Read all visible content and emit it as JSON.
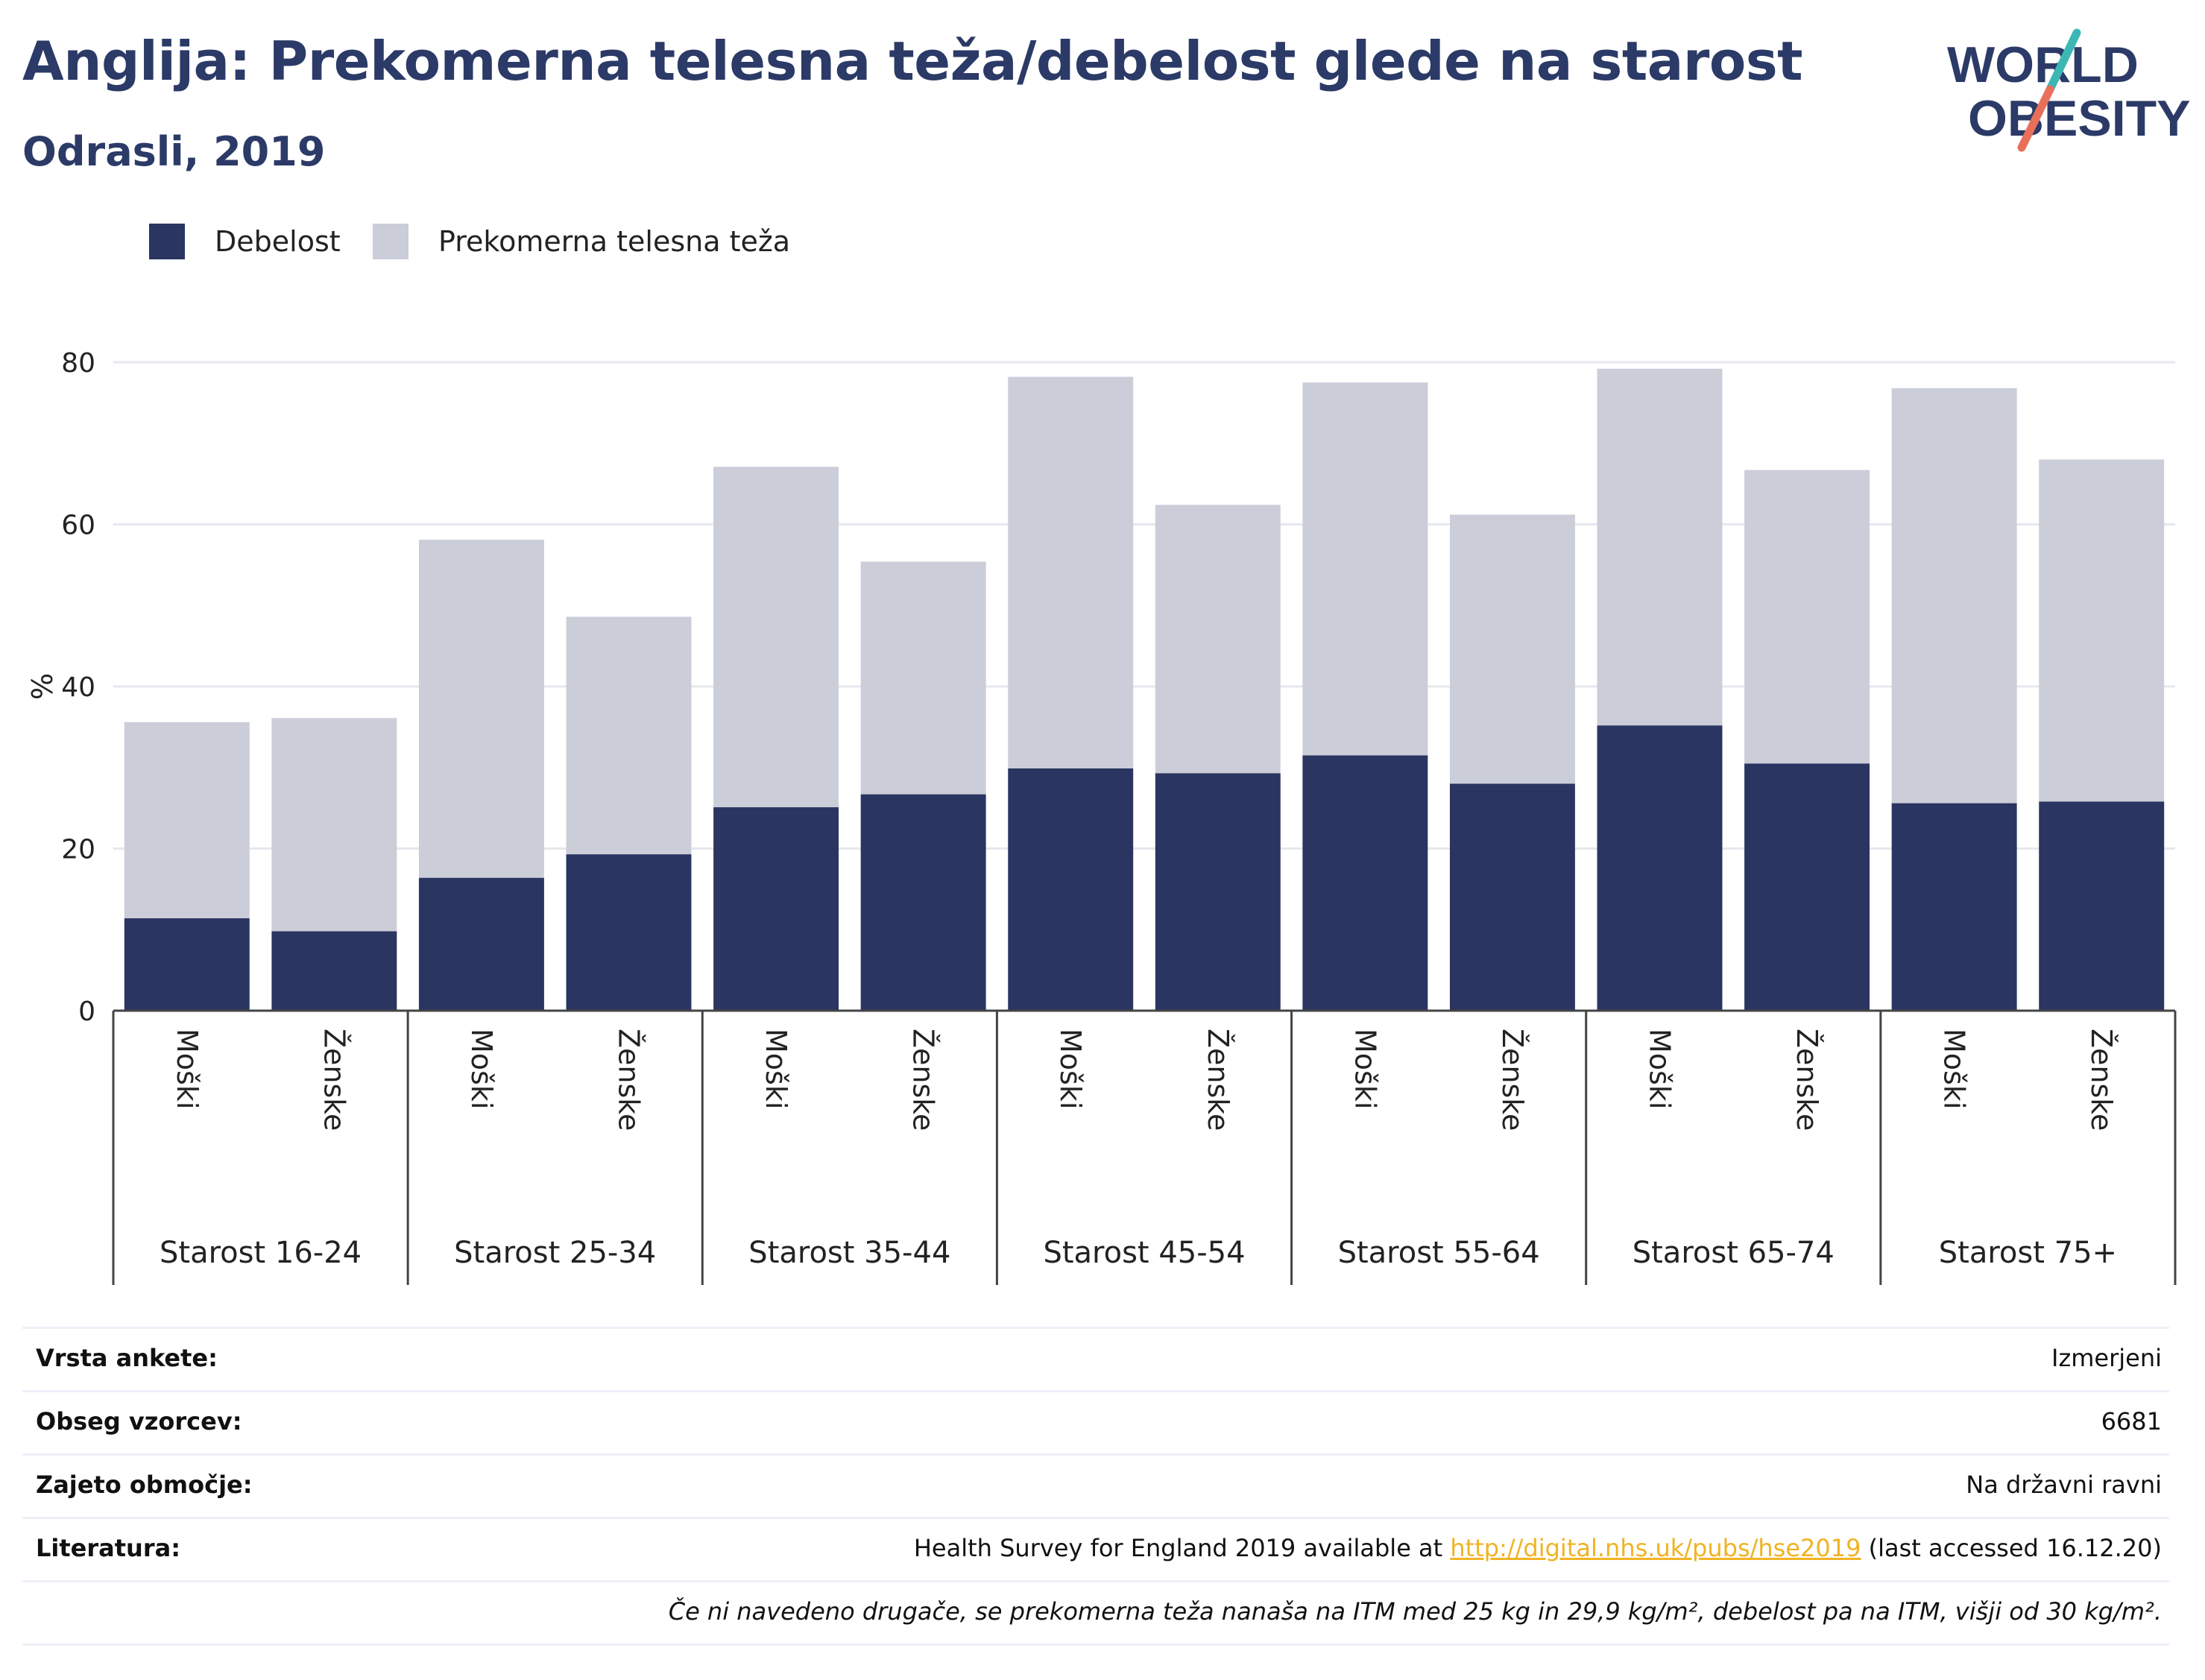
{
  "header": {
    "title": "Anglija: Prekomerna telesna teža/debelost glede na starost",
    "subtitle": "Odrasli, 2019"
  },
  "logo": {
    "line1": "WORLD",
    "line2": "OBESITY",
    "colors": {
      "text": "#2b3a67",
      "slash_top": "#3cb7b4",
      "slash_bottom": "#e8705a"
    }
  },
  "colors": {
    "obesity": "#2b3562",
    "overweight": "#cbcdd9",
    "grid": "#e6e8ee",
    "axis": "#444444"
  },
  "chart_data": {
    "type": "bar",
    "stacked": true,
    "ylabel": "%",
    "ylim": [
      0,
      80
    ],
    "yticks": [
      0,
      20,
      40,
      60,
      80
    ],
    "grid": true,
    "legend_position": "top-left",
    "groups": [
      "Starost 16-24",
      "Starost 25-34",
      "Starost 35-44",
      "Starost 45-54",
      "Starost 55-64",
      "Starost 65-74",
      "Starost 75+"
    ],
    "subcategories": [
      "Moški",
      "Ženske"
    ],
    "categories": [
      "Moški",
      "Ženske",
      "Moški",
      "Ženske",
      "Moški",
      "Ženske",
      "Moški",
      "Ženske",
      "Moški",
      "Ženske",
      "Moški",
      "Ženske",
      "Moški",
      "Ženske"
    ],
    "series": [
      {
        "name": "Debelost",
        "values": [
          11.4,
          9.8,
          16.4,
          19.3,
          25.1,
          26.7,
          29.9,
          29.3,
          31.5,
          28.0,
          35.2,
          30.5,
          25.6,
          25.8
        ]
      },
      {
        "name": "Prekomerna telesna teža",
        "values": [
          24.2,
          26.3,
          41.7,
          29.3,
          42.0,
          28.7,
          48.3,
          33.1,
          46.0,
          33.2,
          44.0,
          36.2,
          51.2,
          42.2
        ]
      }
    ]
  },
  "info": {
    "rows": [
      {
        "key": "Vrsta ankete:",
        "value": "Izmerjeni"
      },
      {
        "key": "Obseg vzorcev:",
        "value": "6681"
      },
      {
        "key": "Zajeto območje:",
        "value": "Na državni ravni"
      }
    ],
    "literature": {
      "key": "Literatura:",
      "before": "Health Survey for England 2019 available at ",
      "link": "http://digital.nhs.uk/pubs/hse2019",
      "after": " (last accessed 16.12.20)"
    },
    "note": "Če ni navedeno drugače, se prekomerna teža nanaša na ITM med 25 kg in 29,9 kg/m², debelost pa na ITM, višji od 30 kg/m²."
  }
}
